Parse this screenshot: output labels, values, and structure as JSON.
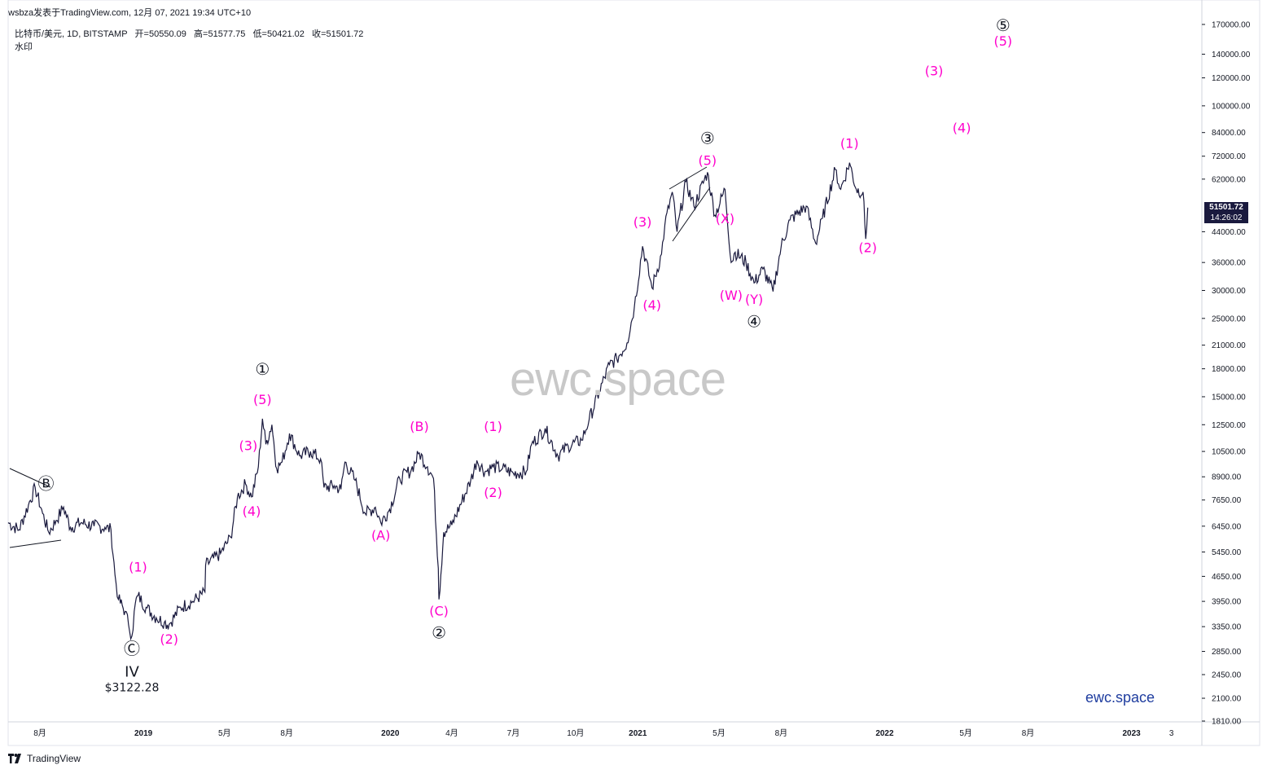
{
  "header": {
    "publisher": "wsbza发表于TradingView.com, 12月 07, 2021 19:34 UTC+10"
  },
  "legend": {
    "symbol": "比特币/美元, 1D, BITSTAMP",
    "open_label": "开=",
    "open": "50550.09",
    "high_label": "高=",
    "high": "51577.75",
    "low_label": "低=",
    "low": "50421.02",
    "close_label": "收=",
    "close": "51501.72",
    "watermark_label": "水印"
  },
  "price_tag": {
    "price": "51501.72",
    "countdown": "14:26:02"
  },
  "watermark": {
    "big": "ewc.space",
    "small": "ewc.space"
  },
  "footer": {
    "brand": "TradingView"
  },
  "colors": {
    "candle": "#1a1a3e",
    "wave_magenta": "#ff00cc",
    "wave_black": "#131722",
    "watermark_small": "#1f3d9f",
    "grid": "#e8e8e8"
  },
  "chart_data": {
    "type": "line",
    "title": "比特币/美元, 1D, BITSTAMP",
    "scale": "log",
    "ylim": [
      1810,
      170000
    ],
    "y_ticks": [
      170000,
      140000,
      120000,
      100000,
      84000,
      72000,
      62000,
      51501.72,
      44000,
      36000,
      30000,
      25000,
      21000,
      18000,
      15000,
      12500,
      10500,
      8900,
      7650,
      6450,
      5450,
      4650,
      3950,
      3350,
      2850,
      2450,
      2100,
      1810
    ],
    "y_tick_labels": [
      "170000.00",
      "140000.00",
      "120000.00",
      "100000.00",
      "84000.00",
      "72000.00",
      "62000.00",
      "51501.72",
      "44000.00",
      "36000.00",
      "30000.00",
      "25000.00",
      "21000.00",
      "18000.00",
      "15000.00",
      "12500.00",
      "10500.00",
      "8900.00",
      "7650.00",
      "6450.00",
      "5450.00",
      "4650.00",
      "3950.00",
      "3350.00",
      "2850.00",
      "2450.00",
      "2100.00",
      "1810.00"
    ],
    "x_ticks": [
      {
        "label": "8月",
        "date": "2018-08-01"
      },
      {
        "label": "2019",
        "date": "2019-01-01"
      },
      {
        "label": "5月",
        "date": "2019-05-01"
      },
      {
        "label": "8月",
        "date": "2019-08-01"
      },
      {
        "label": "2020",
        "date": "2020-01-01"
      },
      {
        "label": "4月",
        "date": "2020-04-01"
      },
      {
        "label": "7月",
        "date": "2020-07-01"
      },
      {
        "label": "10月",
        "date": "2020-10-01"
      },
      {
        "label": "2021",
        "date": "2021-01-01"
      },
      {
        "label": "5月",
        "date": "2021-05-01"
      },
      {
        "label": "8月",
        "date": "2021-08-01"
      },
      {
        "label": "2022",
        "date": "2022-01-01"
      },
      {
        "label": "5月",
        "date": "2022-05-01"
      },
      {
        "label": "8月",
        "date": "2022-08-01"
      },
      {
        "label": "2023",
        "date": "2023-01-01"
      },
      {
        "label": "3",
        "date": "2023-03-01"
      }
    ],
    "xlim": [
      "2018-06-15",
      "2023-04-15"
    ],
    "series": [
      {
        "points": [
          [
            "2018-06-15",
            6600
          ],
          [
            "2018-07-01",
            6300
          ],
          [
            "2018-07-15",
            7400
          ],
          [
            "2018-07-25",
            8300
          ],
          [
            "2018-08-05",
            7000
          ],
          [
            "2018-08-14",
            6200
          ],
          [
            "2018-08-25",
            6700
          ],
          [
            "2018-09-05",
            7300
          ],
          [
            "2018-09-15",
            6400
          ],
          [
            "2018-10-01",
            6600
          ],
          [
            "2018-10-20",
            6450
          ],
          [
            "2018-11-05",
            6400
          ],
          [
            "2018-11-14",
            6300
          ],
          [
            "2018-11-20",
            4700
          ],
          [
            "2018-11-25",
            4000
          ],
          [
            "2018-12-05",
            3700
          ],
          [
            "2018-12-10",
            3400
          ],
          [
            "2018-12-15",
            3150
          ],
          [
            "2018-12-20",
            3900
          ],
          [
            "2018-12-24",
            4100
          ],
          [
            "2019-01-05",
            3800
          ],
          [
            "2019-01-20",
            3550
          ],
          [
            "2019-02-01",
            3450
          ],
          [
            "2019-02-08",
            3400
          ],
          [
            "2019-02-25",
            3800
          ],
          [
            "2019-03-15",
            3950
          ],
          [
            "2019-04-02",
            4200
          ],
          [
            "2019-04-03",
            5000
          ],
          [
            "2019-04-25",
            5400
          ],
          [
            "2019-05-10",
            6000
          ],
          [
            "2019-05-20",
            7800
          ],
          [
            "2019-06-01",
            8500
          ],
          [
            "2019-06-10",
            7800
          ],
          [
            "2019-06-20",
            9500
          ],
          [
            "2019-06-26",
            13000
          ],
          [
            "2019-07-01",
            11000
          ],
          [
            "2019-07-10",
            12500
          ],
          [
            "2019-07-17",
            9400
          ],
          [
            "2019-07-25",
            9800
          ],
          [
            "2019-08-05",
            11800
          ],
          [
            "2019-08-20",
            10200
          ],
          [
            "2019-09-05",
            10500
          ],
          [
            "2019-09-20",
            10000
          ],
          [
            "2019-09-25",
            8300
          ],
          [
            "2019-10-10",
            8400
          ],
          [
            "2019-10-20",
            8200
          ],
          [
            "2019-10-26",
            9800
          ],
          [
            "2019-11-10",
            8700
          ],
          [
            "2019-11-25",
            7000
          ],
          [
            "2019-12-10",
            7300
          ],
          [
            "2019-12-18",
            6600
          ],
          [
            "2019-12-31",
            7200
          ],
          [
            "2020-01-15",
            8800
          ],
          [
            "2020-02-01",
            9300
          ],
          [
            "2020-02-13",
            10400
          ],
          [
            "2020-02-25",
            9500
          ],
          [
            "2020-03-05",
            8800
          ],
          [
            "2020-03-12",
            4900
          ],
          [
            "2020-03-13",
            4000
          ],
          [
            "2020-03-20",
            6200
          ],
          [
            "2020-04-01",
            6500
          ],
          [
            "2020-04-29",
            8700
          ],
          [
            "2020-05-08",
            9900
          ],
          [
            "2020-05-20",
            9200
          ],
          [
            "2020-06-01",
            9500
          ],
          [
            "2020-06-15",
            9400
          ],
          [
            "2020-07-01",
            9100
          ],
          [
            "2020-07-20",
            9200
          ],
          [
            "2020-07-28",
            11000
          ],
          [
            "2020-08-17",
            12200
          ],
          [
            "2020-09-05",
            10200
          ],
          [
            "2020-09-20",
            10900
          ],
          [
            "2020-10-10",
            11300
          ],
          [
            "2020-10-21",
            12900
          ],
          [
            "2020-11-05",
            15500
          ],
          [
            "2020-11-20",
            18500
          ],
          [
            "2020-12-01",
            19200
          ],
          [
            "2020-12-16",
            21300
          ],
          [
            "2020-12-27",
            27000
          ],
          [
            "2021-01-08",
            40000
          ],
          [
            "2021-01-22",
            30500
          ],
          [
            "2021-02-05",
            38000
          ],
          [
            "2021-02-10",
            46000
          ],
          [
            "2021-02-21",
            57000
          ],
          [
            "2021-02-28",
            44000
          ],
          [
            "2021-03-13",
            61000
          ],
          [
            "2021-03-25",
            52000
          ],
          [
            "2021-04-14",
            64800
          ],
          [
            "2021-04-25",
            49000
          ],
          [
            "2021-05-10",
            58000
          ],
          [
            "2021-05-19",
            36000
          ],
          [
            "2021-05-25",
            38500
          ],
          [
            "2021-06-10",
            36000
          ],
          [
            "2021-06-22",
            31500
          ],
          [
            "2021-07-05",
            34500
          ],
          [
            "2021-07-20",
            29800
          ],
          [
            "2021-08-01",
            40000
          ],
          [
            "2021-08-14",
            47500
          ],
          [
            "2021-09-07",
            52000
          ],
          [
            "2021-09-21",
            40800
          ],
          [
            "2021-10-01",
            48000
          ],
          [
            "2021-10-20",
            66000
          ],
          [
            "2021-10-28",
            58000
          ],
          [
            "2021-11-10",
            69000
          ],
          [
            "2021-11-20",
            58000
          ],
          [
            "2021-11-30",
            57000
          ],
          [
            "2021-12-04",
            42000
          ],
          [
            "2021-12-07",
            51500
          ]
        ]
      }
    ],
    "annotations": [
      {
        "text": "Ⓑ",
        "date": "2018-08-10",
        "price": 8200
      },
      {
        "text": "Ⓒ",
        "date": "2018-12-15",
        "price": 2800
      },
      {
        "text": "IV",
        "date": "2018-12-15",
        "price": 2420
      },
      {
        "text": "$3122.28",
        "date": "2018-12-15",
        "price": 2200
      },
      {
        "text": "(1)",
        "date": "2018-12-24",
        "price": 4800
      },
      {
        "text": "(2)",
        "date": "2019-02-08",
        "price": 3000
      },
      {
        "text": "(3)",
        "date": "2019-06-05",
        "price": 10600
      },
      {
        "text": "(4)",
        "date": "2019-06-10",
        "price": 6900
      },
      {
        "text": "(5)",
        "date": "2019-06-26",
        "price": 14300
      },
      {
        "text": "①",
        "date": "2019-06-26",
        "price": 17300
      },
      {
        "text": "(A)",
        "date": "2019-12-18",
        "price": 5900
      },
      {
        "text": "(B)",
        "date": "2020-02-13",
        "price": 12000
      },
      {
        "text": "(C)",
        "date": "2020-03-13",
        "price": 3600
      },
      {
        "text": "②",
        "date": "2020-03-13",
        "price": 3100
      },
      {
        "text": "(1)",
        "date": "2020-06-01",
        "price": 12000
      },
      {
        "text": "(2)",
        "date": "2020-06-01",
        "price": 7800
      },
      {
        "text": "(3)",
        "date": "2021-01-08",
        "price": 45500
      },
      {
        "text": "(4)",
        "date": "2021-01-22",
        "price": 26500
      },
      {
        "text": "(5)",
        "date": "2021-04-14",
        "price": 68000
      },
      {
        "text": "③",
        "date": "2021-04-14",
        "price": 78000
      },
      {
        "text": "(X)",
        "date": "2021-05-10",
        "price": 46500
      },
      {
        "text": "(W)",
        "date": "2021-05-19",
        "price": 28200
      },
      {
        "text": "(Y)",
        "date": "2021-06-22",
        "price": 27500
      },
      {
        "text": "④",
        "date": "2021-06-22",
        "price": 23600
      },
      {
        "text": "(1)",
        "date": "2021-11-10",
        "price": 76000
      },
      {
        "text": "(2)",
        "date": "2021-12-07",
        "price": 38500
      },
      {
        "text": "(3)",
        "date": "2022-03-15",
        "price": 122000
      },
      {
        "text": "(4)",
        "date": "2022-04-25",
        "price": 84000
      },
      {
        "text": "(5)",
        "date": "2022-06-25",
        "price": 148000
      },
      {
        "text": "⑤",
        "date": "2022-06-25",
        "price": 163000
      }
    ]
  }
}
